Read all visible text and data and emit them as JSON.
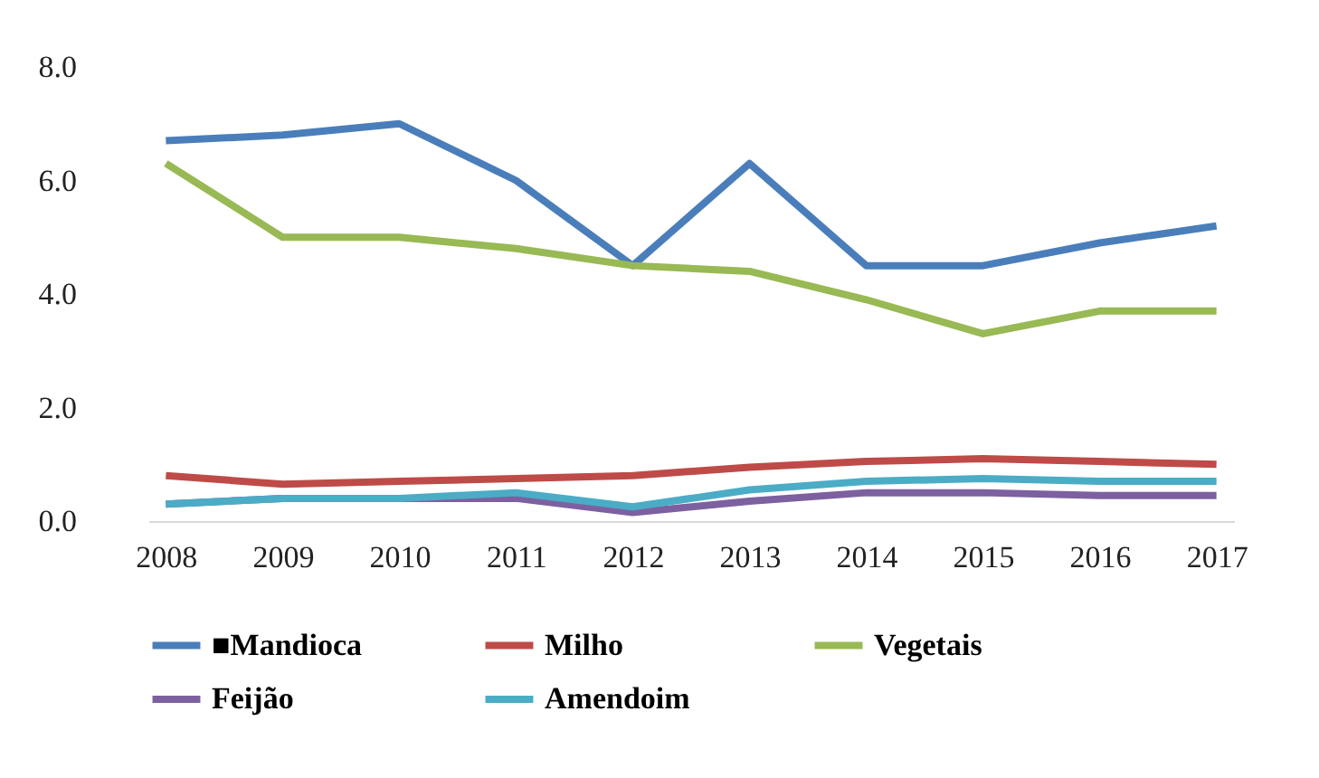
{
  "chart_data": {
    "type": "line",
    "categories": [
      "2008",
      "2009",
      "2010",
      "2011",
      "2012",
      "2013",
      "2014",
      "2015",
      "2016",
      "2017"
    ],
    "series": [
      {
        "name": "■Mandioca",
        "color": "#4a7ebb",
        "values": [
          6.7,
          6.8,
          7.0,
          6.0,
          4.5,
          6.3,
          4.5,
          4.5,
          4.9,
          5.2
        ]
      },
      {
        "name": "Milho",
        "color": "#be4b48",
        "values": [
          0.8,
          0.65,
          0.7,
          0.75,
          0.8,
          0.95,
          1.05,
          1.1,
          1.05,
          1.0
        ]
      },
      {
        "name": "Vegetais",
        "color": "#98b954",
        "values": [
          6.3,
          5.0,
          5.0,
          4.8,
          4.5,
          4.4,
          3.9,
          3.3,
          3.7,
          3.7
        ]
      },
      {
        "name": "Feijão",
        "color": "#7d60a0",
        "values": [
          0.3,
          0.4,
          0.4,
          0.4,
          0.15,
          0.35,
          0.5,
          0.5,
          0.45,
          0.45
        ]
      },
      {
        "name": "Amendoim",
        "color": "#4bacc6",
        "values": [
          0.3,
          0.4,
          0.4,
          0.5,
          0.25,
          0.55,
          0.7,
          0.75,
          0.7,
          0.7
        ]
      }
    ],
    "ylim": [
      0,
      8
    ],
    "yticks": [
      {
        "value": 0,
        "label": "0.0"
      },
      {
        "value": 2,
        "label": "2.0"
      },
      {
        "value": 4,
        "label": "4.0"
      },
      {
        "value": 6,
        "label": "6.0"
      },
      {
        "value": 8,
        "label": "8.0"
      }
    ],
    "grid": false,
    "legend": "bottom",
    "line_style": "solid"
  }
}
